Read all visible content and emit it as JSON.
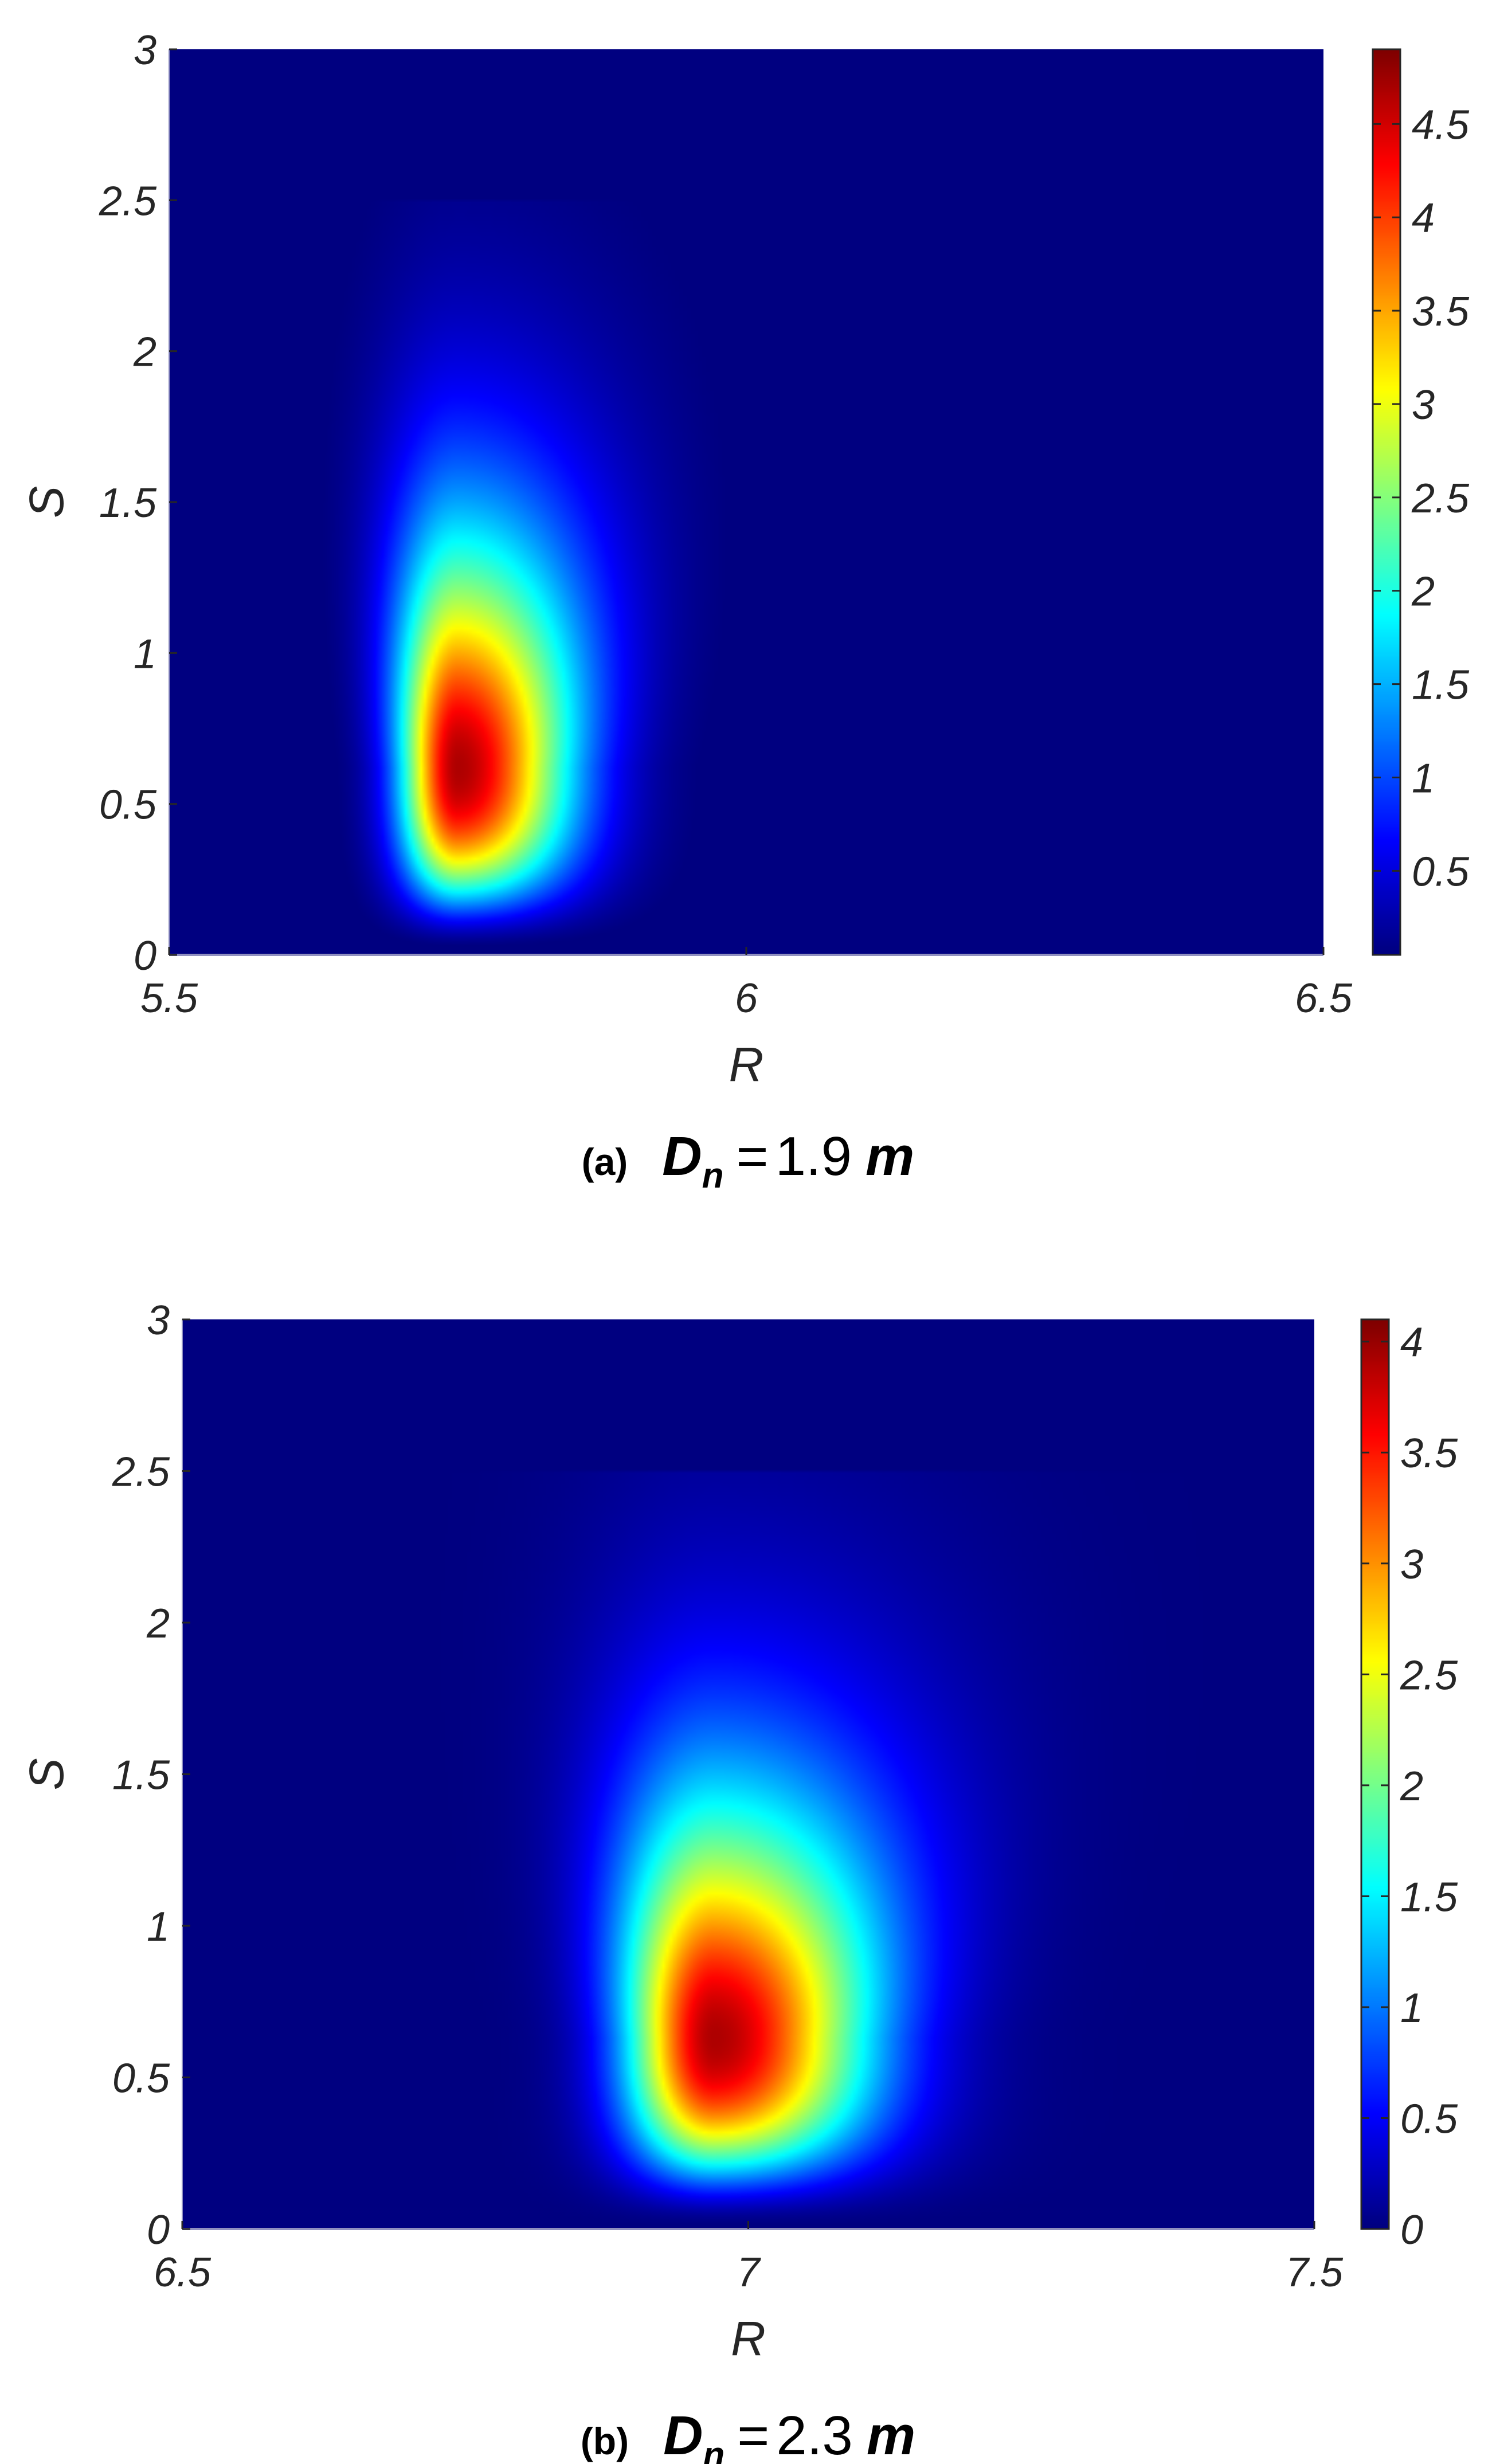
{
  "chart_data": [
    {
      "type": "heatmap",
      "panel_label": "(a)",
      "caption": {
        "symbol": "D",
        "subscript": "n",
        "operator": "=",
        "value": "1.9",
        "unit": "m"
      },
      "xlabel": "R",
      "ylabel": "S",
      "xlim": [
        5.5,
        6.5
      ],
      "ylim": [
        0,
        3
      ],
      "xticks": [
        "5.5",
        "6",
        "6.5"
      ],
      "yticks": [
        "0",
        "0.5",
        "1",
        "1.5",
        "2",
        "2.5",
        "3"
      ],
      "colormap": "jet",
      "colorbar": {
        "min": 0.05,
        "max": 4.9,
        "ticks": [
          "0.5",
          "1",
          "1.5",
          "2",
          "2.5",
          "3",
          "3.5",
          "4",
          "4.5"
        ]
      },
      "peak": {
        "R": 5.75,
        "S": 0.62,
        "value": 4.9
      },
      "extent": {
        "R_min": 5.66,
        "R_max": 5.93,
        "S_max": 2.5
      },
      "grid": false
    },
    {
      "type": "heatmap",
      "panel_label": "(b)",
      "caption": {
        "symbol": "D",
        "subscript": "n",
        "operator": "=",
        "value": "2.3",
        "unit": "m"
      },
      "xlabel": "R",
      "ylabel": "S",
      "xlim": [
        6.5,
        7.5
      ],
      "ylim": [
        0,
        3
      ],
      "xticks": [
        "6.5",
        "7",
        "7.5"
      ],
      "yticks": [
        "0",
        "0.5",
        "1",
        "1.5",
        "2",
        "2.5",
        "3"
      ],
      "colormap": "jet",
      "colorbar": {
        "min": 0,
        "max": 4.1,
        "ticks": [
          "0",
          "0.5",
          "1",
          "1.5",
          "2",
          "2.5",
          "3",
          "3.5",
          "4"
        ]
      },
      "peak": {
        "R": 6.97,
        "S": 0.63,
        "value": 4.1
      },
      "extent": {
        "R_min": 6.83,
        "R_max": 7.22,
        "S_max": 2.5
      },
      "grid": false
    }
  ]
}
